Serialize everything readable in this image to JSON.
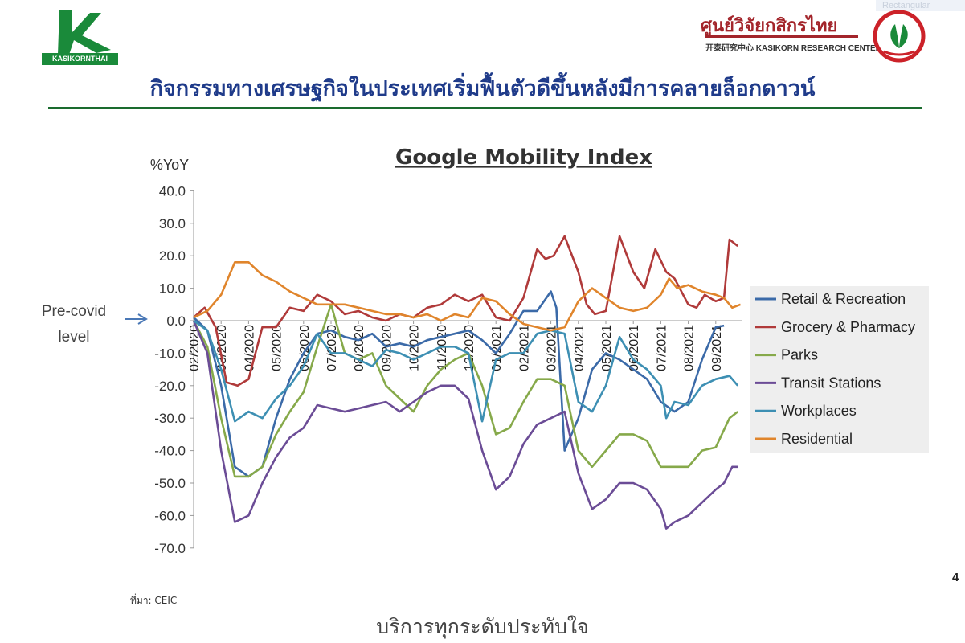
{
  "header": {
    "ghost_tab": "Rectangular",
    "brand_left_caption": "KASIKORNTHAI",
    "center_name_th": "ศูนย์วิจัยกสิกรไทย",
    "center_name_en": "开泰研究中心 KASIKORN RESEARCH CENTER"
  },
  "page": {
    "heading": "กิจกรรมทางเศรษฐกิจในประเทศเริ่มฟื้นตัวดีขึ้นหลังมีการคลายล็อกดาวน์",
    "source": "ที่มา: CEIC",
    "page_number": "4",
    "tagline": "บริการทุกระดับประทับใจ",
    "precovid_label": "Pre-covid level"
  },
  "colors": {
    "heading": "#1f3b8a",
    "rule": "#1a6b2e",
    "brand_green": "#1a8a3a",
    "brand_red": "#a3252b"
  },
  "icons": {
    "precovid_pointer": "right-arrow-icon"
  },
  "chart_data": {
    "type": "line",
    "title": "Google Mobility Index",
    "ylabel": "%YoY",
    "xlabel": "",
    "ylim": [
      -70,
      40
    ],
    "yticks": [
      40,
      30,
      20,
      10,
      0,
      -10,
      -20,
      -30,
      -40,
      -50,
      -60,
      -70
    ],
    "ytick_labels": [
      "40.0",
      "30.0",
      "20.0",
      "10.0",
      "0.0",
      "-10.0",
      "-20.0",
      "-30.0",
      "-40.0",
      "-50.0",
      "-60.0",
      "-70.0"
    ],
    "x_tick_labels": [
      "02/2020",
      "03/2020",
      "04/2020",
      "05/2020",
      "06/2020",
      "07/2020",
      "08/2020",
      "09/2020",
      "10/2020",
      "11/2020",
      "12/2020",
      "01/2021",
      "02/2021",
      "03/2021",
      "04/2021",
      "05/2021",
      "06/2021",
      "07/2021",
      "08/2021",
      "09/2021"
    ],
    "legend_position": "right",
    "grid": false,
    "series": [
      {
        "name": "Retail & Recreation",
        "color": "#3b6aa8",
        "points": [
          [
            0,
            1
          ],
          [
            0.5,
            -3
          ],
          [
            1,
            -20
          ],
          [
            1.5,
            -45
          ],
          [
            2,
            -48
          ],
          [
            2.5,
            -45
          ],
          [
            3,
            -30
          ],
          [
            3.5,
            -18
          ],
          [
            4,
            -10
          ],
          [
            4.5,
            -4
          ],
          [
            5,
            -3
          ],
          [
            5.5,
            -5
          ],
          [
            6,
            -6
          ],
          [
            6.5,
            -4
          ],
          [
            7,
            -8
          ],
          [
            7.5,
            -7
          ],
          [
            8,
            -8
          ],
          [
            8.5,
            -6
          ],
          [
            9,
            -5
          ],
          [
            9.5,
            -4
          ],
          [
            10,
            -3
          ],
          [
            10.5,
            -6
          ],
          [
            11,
            -10
          ],
          [
            11.5,
            -4
          ],
          [
            12,
            3
          ],
          [
            12.5,
            3
          ],
          [
            13,
            9
          ],
          [
            13.2,
            4
          ],
          [
            13.5,
            -40
          ],
          [
            14,
            -30
          ],
          [
            14.5,
            -15
          ],
          [
            15,
            -10
          ],
          [
            15.5,
            -12
          ],
          [
            16,
            -15
          ],
          [
            16.5,
            -18
          ],
          [
            17,
            -25
          ],
          [
            17.5,
            -28
          ],
          [
            18,
            -25
          ],
          [
            18.5,
            -12
          ],
          [
            19,
            -2
          ],
          [
            19.3,
            -1.5
          ]
        ]
      },
      {
        "name": "Grocery & Pharmacy",
        "color": "#b03a3a",
        "points": [
          [
            0,
            1
          ],
          [
            0.4,
            4
          ],
          [
            0.8,
            -2
          ],
          [
            1.2,
            -19
          ],
          [
            1.6,
            -20
          ],
          [
            2,
            -18
          ],
          [
            2.5,
            -2
          ],
          [
            3,
            -2
          ],
          [
            3.5,
            4
          ],
          [
            4,
            3
          ],
          [
            4.5,
            8
          ],
          [
            5,
            6
          ],
          [
            5.5,
            2
          ],
          [
            6,
            3
          ],
          [
            6.5,
            1
          ],
          [
            7,
            0
          ],
          [
            7.5,
            2
          ],
          [
            8,
            1
          ],
          [
            8.5,
            4
          ],
          [
            9,
            5
          ],
          [
            9.5,
            8
          ],
          [
            10,
            6
          ],
          [
            10.5,
            8
          ],
          [
            11,
            1
          ],
          [
            11.5,
            0
          ],
          [
            12,
            7
          ],
          [
            12.5,
            22
          ],
          [
            12.8,
            19
          ],
          [
            13.1,
            20
          ],
          [
            13.5,
            26
          ],
          [
            14,
            15
          ],
          [
            14.3,
            5
          ],
          [
            14.6,
            2
          ],
          [
            15,
            3
          ],
          [
            15.5,
            26
          ],
          [
            16,
            15
          ],
          [
            16.4,
            10
          ],
          [
            16.8,
            22
          ],
          [
            17.2,
            15
          ],
          [
            17.5,
            13
          ],
          [
            18,
            5
          ],
          [
            18.3,
            4
          ],
          [
            18.6,
            8
          ],
          [
            19,
            6
          ],
          [
            19.3,
            7
          ],
          [
            19.5,
            25
          ],
          [
            19.8,
            23
          ]
        ]
      },
      {
        "name": "Parks",
        "color": "#86a94a",
        "points": [
          [
            0,
            0
          ],
          [
            0.5,
            -8
          ],
          [
            1,
            -30
          ],
          [
            1.5,
            -48
          ],
          [
            2,
            -48
          ],
          [
            2.5,
            -45
          ],
          [
            3,
            -35
          ],
          [
            3.5,
            -28
          ],
          [
            4,
            -22
          ],
          [
            4.5,
            -8
          ],
          [
            5,
            5
          ],
          [
            5.5,
            -10
          ],
          [
            6,
            -12
          ],
          [
            6.5,
            -10
          ],
          [
            7,
            -20
          ],
          [
            7.5,
            -24
          ],
          [
            8,
            -28
          ],
          [
            8.5,
            -20
          ],
          [
            9,
            -15
          ],
          [
            9.5,
            -12
          ],
          [
            10,
            -10
          ],
          [
            10.5,
            -20
          ],
          [
            11,
            -35
          ],
          [
            11.5,
            -33
          ],
          [
            12,
            -25
          ],
          [
            12.5,
            -18
          ],
          [
            13,
            -18
          ],
          [
            13.5,
            -20
          ],
          [
            14,
            -40
          ],
          [
            14.5,
            -45
          ],
          [
            15,
            -40
          ],
          [
            15.5,
            -35
          ],
          [
            16,
            -35
          ],
          [
            16.5,
            -37
          ],
          [
            17,
            -45
          ],
          [
            17.5,
            -45
          ],
          [
            18,
            -45
          ],
          [
            18.5,
            -40
          ],
          [
            19,
            -39
          ],
          [
            19.5,
            -30
          ],
          [
            19.8,
            -28
          ]
        ]
      },
      {
        "name": "Transit Stations",
        "color": "#6b4c96",
        "points": [
          [
            0,
            0
          ],
          [
            0.5,
            -10
          ],
          [
            1,
            -40
          ],
          [
            1.5,
            -62
          ],
          [
            2,
            -60
          ],
          [
            2.5,
            -50
          ],
          [
            3,
            -42
          ],
          [
            3.5,
            -36
          ],
          [
            4,
            -33
          ],
          [
            4.5,
            -26
          ],
          [
            5,
            -27
          ],
          [
            5.5,
            -28
          ],
          [
            6,
            -27
          ],
          [
            6.5,
            -26
          ],
          [
            7,
            -25
          ],
          [
            7.5,
            -28
          ],
          [
            8,
            -25
          ],
          [
            8.5,
            -22
          ],
          [
            9,
            -20
          ],
          [
            9.5,
            -20
          ],
          [
            10,
            -24
          ],
          [
            10.5,
            -40
          ],
          [
            11,
            -52
          ],
          [
            11.5,
            -48
          ],
          [
            12,
            -38
          ],
          [
            12.5,
            -32
          ],
          [
            13,
            -30
          ],
          [
            13.5,
            -28
          ],
          [
            14,
            -47
          ],
          [
            14.5,
            -58
          ],
          [
            15,
            -55
          ],
          [
            15.5,
            -50
          ],
          [
            16,
            -50
          ],
          [
            16.5,
            -52
          ],
          [
            17,
            -58
          ],
          [
            17.2,
            -64
          ],
          [
            17.5,
            -62
          ],
          [
            18,
            -60
          ],
          [
            18.5,
            -56
          ],
          [
            19,
            -52
          ],
          [
            19.3,
            -50
          ],
          [
            19.6,
            -45
          ],
          [
            19.8,
            -45
          ]
        ]
      },
      {
        "name": "Workplaces",
        "color": "#3d8fb3",
        "points": [
          [
            0,
            0
          ],
          [
            0.5,
            -3
          ],
          [
            1,
            -15
          ],
          [
            1.5,
            -31
          ],
          [
            2,
            -28
          ],
          [
            2.5,
            -30
          ],
          [
            3,
            -24
          ],
          [
            3.5,
            -20
          ],
          [
            4,
            -14
          ],
          [
            4.5,
            -4
          ],
          [
            5,
            -10
          ],
          [
            5.5,
            -10
          ],
          [
            6,
            -12
          ],
          [
            6.5,
            -14
          ],
          [
            7,
            -9
          ],
          [
            7.5,
            -10
          ],
          [
            8,
            -12
          ],
          [
            8.5,
            -10
          ],
          [
            9,
            -8
          ],
          [
            9.5,
            -8
          ],
          [
            10,
            -10
          ],
          [
            10.5,
            -31
          ],
          [
            11,
            -12
          ],
          [
            11.5,
            -10
          ],
          [
            12,
            -10
          ],
          [
            12.5,
            -4
          ],
          [
            13,
            -3
          ],
          [
            13.5,
            -4
          ],
          [
            14,
            -25
          ],
          [
            14.5,
            -28
          ],
          [
            15,
            -20
          ],
          [
            15.5,
            -5
          ],
          [
            16,
            -12
          ],
          [
            16.5,
            -15
          ],
          [
            17,
            -20
          ],
          [
            17.2,
            -30
          ],
          [
            17.5,
            -25
          ],
          [
            18,
            -26
          ],
          [
            18.5,
            -20
          ],
          [
            19,
            -18
          ],
          [
            19.5,
            -17
          ],
          [
            19.8,
            -20
          ]
        ]
      },
      {
        "name": "Residential",
        "color": "#e0852c",
        "points": [
          [
            0,
            1
          ],
          [
            0.5,
            3
          ],
          [
            1,
            8
          ],
          [
            1.5,
            18
          ],
          [
            2,
            18
          ],
          [
            2.5,
            14
          ],
          [
            3,
            12
          ],
          [
            3.5,
            9
          ],
          [
            4,
            7
          ],
          [
            4.5,
            5
          ],
          [
            5,
            5
          ],
          [
            5.5,
            5
          ],
          [
            6,
            4
          ],
          [
            6.5,
            3
          ],
          [
            7,
            2
          ],
          [
            7.5,
            2
          ],
          [
            8,
            1
          ],
          [
            8.5,
            2
          ],
          [
            9,
            0
          ],
          [
            9.5,
            2
          ],
          [
            10,
            1
          ],
          [
            10.5,
            7
          ],
          [
            11,
            6
          ],
          [
            11.5,
            2
          ],
          [
            12,
            -1
          ],
          [
            12.5,
            -2
          ],
          [
            13,
            -3
          ],
          [
            13.5,
            -2
          ],
          [
            14,
            6
          ],
          [
            14.5,
            10
          ],
          [
            15,
            7
          ],
          [
            15.5,
            4
          ],
          [
            16,
            3
          ],
          [
            16.5,
            4
          ],
          [
            17,
            8
          ],
          [
            17.3,
            13
          ],
          [
            17.6,
            10
          ],
          [
            18,
            11
          ],
          [
            18.5,
            9
          ],
          [
            19,
            8
          ],
          [
            19.3,
            7
          ],
          [
            19.6,
            4
          ],
          [
            19.9,
            5
          ]
        ]
      }
    ]
  }
}
